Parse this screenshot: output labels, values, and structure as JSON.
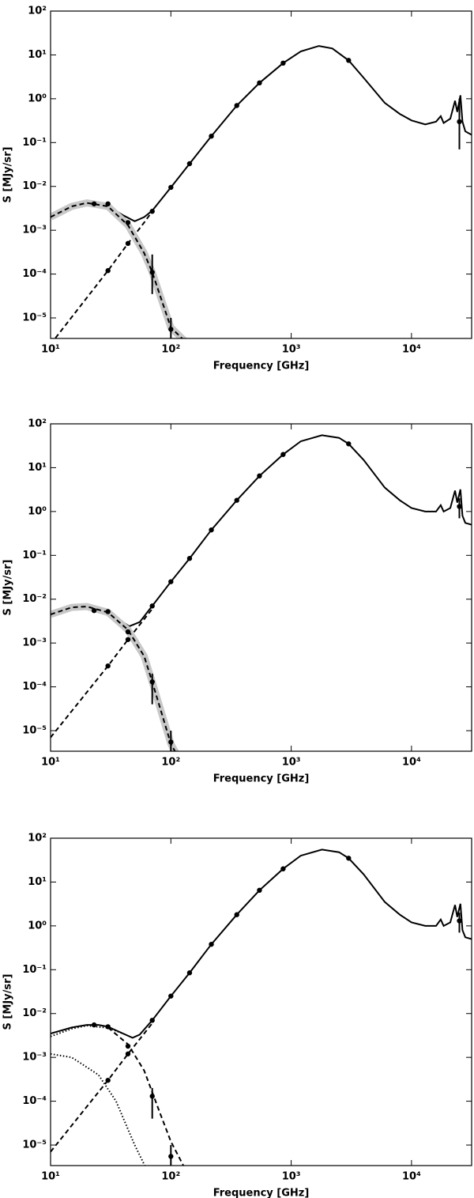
{
  "chart_data": [
    {
      "type": "line",
      "xlabel": "Frequency [GHz]",
      "ylabel": "S [MJy/sr]",
      "log_x": true,
      "log_y": true,
      "xlim": [
        10,
        31600
      ],
      "ylim": [
        3.4e-06,
        100
      ],
      "xticks": [
        {
          "value": 10,
          "label": "10¹"
        },
        {
          "value": 100,
          "label": "10²"
        },
        {
          "value": 1000,
          "label": "10³"
        },
        {
          "value": 10000,
          "label": "10⁴"
        }
      ],
      "yticks": [
        {
          "value": 1e-05,
          "label": "10⁻⁵"
        },
        {
          "value": 0.0001,
          "label": "10⁻⁴"
        },
        {
          "value": 0.001,
          "label": "10⁻³"
        },
        {
          "value": 0.01,
          "label": "10⁻²"
        },
        {
          "value": 0.1,
          "label": "10⁻¹"
        },
        {
          "value": 1,
          "label": "10⁰"
        },
        {
          "value": 10,
          "label": "10¹"
        },
        {
          "value": 100,
          "label": "10²"
        }
      ],
      "series": [
        {
          "kind": "line",
          "style": "solid",
          "color": "#000000",
          "x": [
            10,
            15,
            20,
            25,
            30,
            40,
            50,
            60,
            70,
            100,
            143,
            217,
            353,
            545,
            857,
            1200,
            1700,
            2200,
            3000,
            4000,
            6000,
            8000,
            10000,
            13000,
            16000,
            17500,
            18500,
            21000,
            23000,
            24000,
            25500,
            26500,
            28000,
            31600
          ],
          "values": [
            0.002,
            0.0035,
            0.0042,
            0.0042,
            0.0036,
            0.0022,
            0.0016,
            0.002,
            0.0028,
            0.0095,
            0.033,
            0.14,
            0.7,
            2.3,
            6.5,
            12,
            16,
            14,
            7.5,
            3,
            0.8,
            0.45,
            0.32,
            0.26,
            0.3,
            0.4,
            0.28,
            0.35,
            0.9,
            0.5,
            1.2,
            0.3,
            0.18,
            0.15
          ]
        },
        {
          "kind": "line",
          "style": "dashed",
          "color": "#000000",
          "x": [
            10,
            30,
            44,
            60,
            70
          ],
          "values": [
            2.5e-06,
            0.00012,
            0.0005,
            0.0015,
            0.0027
          ]
        },
        {
          "kind": "line",
          "style": "dashed",
          "color": "#000000",
          "band_color": "#c8c8c8",
          "x": [
            10,
            15,
            20,
            30,
            44,
            60,
            70,
            100,
            130
          ],
          "values": [
            0.002,
            0.0035,
            0.0042,
            0.0035,
            0.0013,
            0.0003,
            0.00011,
            6e-06,
            3e-06
          ]
        },
        {
          "kind": "points",
          "color": "#000000",
          "x": [
            23,
            30,
            44,
            70,
            100
          ],
          "values": [
            0.004,
            0.004,
            0.0015,
            0.00011,
            5.5e-06
          ],
          "err_low": [
            null,
            null,
            null,
            3.5e-05,
            1e-06
          ],
          "err_high": [
            null,
            null,
            null,
            0.00028,
            1e-05
          ]
        },
        {
          "kind": "points",
          "color": "#000000",
          "x": [
            30,
            44,
            70,
            100,
            143,
            217,
            353,
            545,
            857,
            3000,
            25000
          ],
          "values": [
            0.00012,
            0.0005,
            0.0027,
            0.0095,
            0.033,
            0.14,
            0.7,
            2.3,
            6.5,
            7.5,
            0.3
          ],
          "err_low": [
            null,
            null,
            null,
            null,
            null,
            null,
            null,
            null,
            null,
            null,
            0.07
          ],
          "err_high": [
            null,
            null,
            null,
            null,
            null,
            null,
            null,
            null,
            null,
            null,
            1
          ]
        }
      ]
    },
    {
      "type": "line",
      "xlabel": "Frequency [GHz]",
      "ylabel": "S [MJy/sr]",
      "log_x": true,
      "log_y": true,
      "xlim": [
        10,
        31600
      ],
      "ylim": [
        3.4e-06,
        100
      ],
      "xticks": [
        {
          "value": 10,
          "label": "10¹"
        },
        {
          "value": 100,
          "label": "10²"
        },
        {
          "value": 1000,
          "label": "10³"
        },
        {
          "value": 10000,
          "label": "10⁴"
        }
      ],
      "yticks": [
        {
          "value": 1e-05,
          "label": "10⁻⁵"
        },
        {
          "value": 0.0001,
          "label": "10⁻⁴"
        },
        {
          "value": 0.001,
          "label": "10⁻³"
        },
        {
          "value": 0.01,
          "label": "10⁻²"
        },
        {
          "value": 0.1,
          "label": "10⁻¹"
        },
        {
          "value": 1,
          "label": "10⁰"
        },
        {
          "value": 10,
          "label": "10¹"
        },
        {
          "value": 100,
          "label": "10²"
        }
      ],
      "series": [
        {
          "kind": "line",
          "style": "solid",
          "color": "#000000",
          "x": [
            10,
            15,
            20,
            25,
            30,
            40,
            45,
            55,
            70,
            100,
            143,
            217,
            353,
            545,
            857,
            1200,
            1800,
            2500,
            3000,
            4000,
            6000,
            8000,
            10000,
            13000,
            16000,
            17500,
            18500,
            21000,
            23000,
            24000,
            25500,
            26500,
            28000,
            31600
          ],
          "values": [
            0.0045,
            0.0065,
            0.0068,
            0.006,
            0.005,
            0.003,
            0.0024,
            0.003,
            0.007,
            0.025,
            0.085,
            0.38,
            1.8,
            6.5,
            20,
            40,
            55,
            48,
            35,
            15,
            3.5,
            1.8,
            1.2,
            1,
            1,
            1.4,
            1,
            1.2,
            3,
            1.6,
            3.2,
            0.8,
            0.55,
            0.5
          ]
        },
        {
          "kind": "line",
          "style": "dashed",
          "color": "#000000",
          "x": [
            10,
            30,
            44,
            60,
            70
          ],
          "values": [
            7e-06,
            0.0003,
            0.0012,
            0.0035,
            0.006
          ]
        },
        {
          "kind": "line",
          "style": "dashed",
          "color": "#000000",
          "band_color": "#c8c8c8",
          "x": [
            10,
            15,
            20,
            30,
            44,
            60,
            70,
            100,
            115
          ],
          "values": [
            0.0045,
            0.0065,
            0.0068,
            0.005,
            0.002,
            0.0005,
            0.00013,
            5e-06,
            2.5e-06
          ]
        },
        {
          "kind": "points",
          "color": "#000000",
          "x": [
            23,
            30,
            44,
            70,
            100
          ],
          "values": [
            0.0055,
            0.0052,
            0.0018,
            0.00013,
            5.5e-06
          ],
          "err_low": [
            null,
            null,
            null,
            4e-05,
            1e-06
          ],
          "err_high": [
            null,
            null,
            null,
            0.0002,
            1e-05
          ]
        },
        {
          "kind": "points",
          "color": "#000000",
          "x": [
            30,
            44,
            70,
            100,
            143,
            217,
            353,
            545,
            857,
            3000,
            25000
          ],
          "values": [
            0.0003,
            0.0012,
            0.007,
            0.025,
            0.085,
            0.38,
            1.8,
            6.5,
            20,
            35,
            1.3
          ],
          "err_low": [
            null,
            null,
            null,
            null,
            null,
            null,
            null,
            null,
            null,
            null,
            0.7
          ],
          "err_high": [
            null,
            null,
            null,
            null,
            null,
            null,
            null,
            null,
            null,
            null,
            2
          ]
        }
      ]
    },
    {
      "type": "line",
      "xlabel": "Frequency [GHz]",
      "ylabel": "S [MJy/sr]",
      "log_x": true,
      "log_y": true,
      "xlim": [
        10,
        31600
      ],
      "ylim": [
        3.4e-06,
        100
      ],
      "xticks": [
        {
          "value": 10,
          "label": "10¹"
        },
        {
          "value": 100,
          "label": "10²"
        },
        {
          "value": 1000,
          "label": "10³"
        },
        {
          "value": 10000,
          "label": "10⁴"
        }
      ],
      "yticks": [
        {
          "value": 1e-05,
          "label": "10⁻⁵"
        },
        {
          "value": 0.0001,
          "label": "10⁻⁴"
        },
        {
          "value": 0.001,
          "label": "10⁻³"
        },
        {
          "value": 0.01,
          "label": "10⁻²"
        },
        {
          "value": 0.1,
          "label": "10⁻¹"
        },
        {
          "value": 1,
          "label": "10⁰"
        },
        {
          "value": 10,
          "label": "10¹"
        },
        {
          "value": 100,
          "label": "10²"
        }
      ],
      "series": [
        {
          "kind": "line",
          "style": "solid",
          "color": "#000000",
          "x": [
            10,
            15,
            20,
            25,
            30,
            40,
            48,
            55,
            70,
            100,
            143,
            217,
            353,
            545,
            857,
            1200,
            1800,
            2500,
            3000,
            4000,
            6000,
            8000,
            10000,
            13000,
            16000,
            17500,
            18500,
            21000,
            23000,
            24000,
            25500,
            26500,
            28000,
            31600
          ],
          "values": [
            0.0035,
            0.0048,
            0.0055,
            0.0055,
            0.005,
            0.0035,
            0.0028,
            0.0033,
            0.007,
            0.025,
            0.085,
            0.38,
            1.8,
            6.5,
            20,
            40,
            55,
            48,
            35,
            15,
            3.5,
            1.8,
            1.2,
            1,
            1,
            1.4,
            1,
            1.2,
            3,
            1.6,
            3.2,
            0.8,
            0.55,
            0.5
          ]
        },
        {
          "kind": "line",
          "style": "dashed",
          "color": "#000000",
          "x": [
            10,
            30,
            44,
            60,
            70
          ],
          "values": [
            7e-06,
            0.0003,
            0.0012,
            0.0035,
            0.006
          ]
        },
        {
          "kind": "line",
          "style": "dashed",
          "color": "#000000",
          "x": [
            30,
            44,
            60,
            80,
            100,
            130
          ],
          "values": [
            0.0048,
            0.002,
            0.0005,
            6e-05,
            1.2e-05,
            3e-06
          ]
        },
        {
          "kind": "line",
          "style": "dotted",
          "color": "#000000",
          "x": [
            10,
            15,
            20,
            30,
            40
          ],
          "values": [
            0.003,
            0.0045,
            0.0053,
            0.0047,
            0.0035
          ]
        },
        {
          "kind": "line",
          "style": "dotted",
          "color": "#000000",
          "x": [
            10,
            15,
            25,
            35,
            50,
            62
          ],
          "values": [
            0.0012,
            0.001,
            0.0004,
            0.0001,
            1e-05,
            3e-06
          ]
        },
        {
          "kind": "points",
          "color": "#000000",
          "x": [
            23,
            30,
            44,
            70,
            100
          ],
          "values": [
            0.0055,
            0.005,
            0.0018,
            0.00013,
            5.5e-06
          ],
          "err_low": [
            null,
            null,
            null,
            4e-05,
            1e-06
          ],
          "err_high": [
            null,
            null,
            null,
            0.0002,
            1e-05
          ]
        },
        {
          "kind": "points",
          "color": "#000000",
          "x": [
            30,
            44,
            70,
            100,
            143,
            217,
            353,
            545,
            857,
            3000,
            25000
          ],
          "values": [
            0.0003,
            0.0012,
            0.007,
            0.025,
            0.085,
            0.38,
            1.8,
            6.5,
            20,
            35,
            1.3
          ],
          "err_low": [
            null,
            null,
            null,
            null,
            null,
            null,
            null,
            null,
            null,
            null,
            0.7
          ],
          "err_high": [
            null,
            null,
            null,
            null,
            null,
            null,
            null,
            null,
            null,
            null,
            2
          ]
        }
      ]
    }
  ]
}
